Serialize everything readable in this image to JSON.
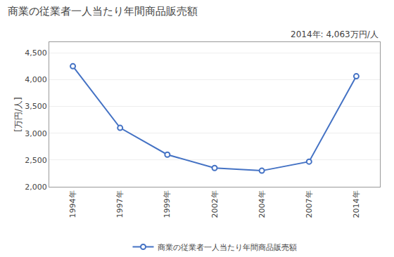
{
  "chart_data": {
    "type": "line",
    "title": "商業の従業者一人当たり年間商品販売額",
    "ylabel": "[万円/人]",
    "annotation": "2014年: 4,063万円/人",
    "categories": [
      "1994年",
      "1997年",
      "1999年",
      "2002年",
      "2004年",
      "2007年",
      "2014年"
    ],
    "series": [
      {
        "name": "商業の従業者一人当たり年間商品販売額",
        "color": "#4472C4",
        "marker": "circle",
        "line_style": "solid",
        "values": [
          4250,
          3100,
          2600,
          2350,
          2300,
          2470,
          4063
        ]
      }
    ],
    "ylim": [
      2000,
      4700
    ],
    "yticks": [
      {
        "value": 2000,
        "label": "2,000"
      },
      {
        "value": 2500,
        "label": "2,500"
      },
      {
        "value": 3000,
        "label": "3,000"
      },
      {
        "value": 3500,
        "label": "3,500"
      },
      {
        "value": 4000,
        "label": "4,000"
      },
      {
        "value": 4500,
        "label": "4,500"
      }
    ],
    "grid": true,
    "legend": "bottom"
  }
}
